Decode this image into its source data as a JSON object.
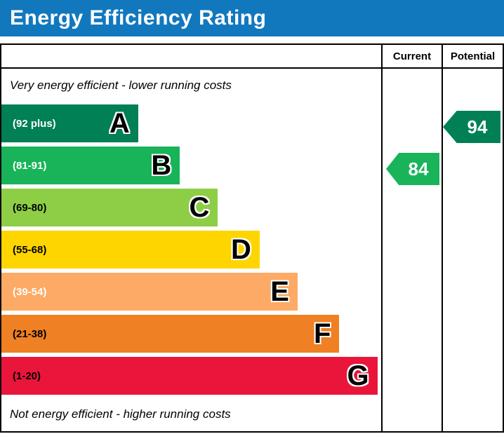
{
  "header": {
    "title": "Energy Efficiency Rating"
  },
  "table": {
    "current_label": "Current",
    "potential_label": "Potential"
  },
  "captions": {
    "top": "Very energy efficient - lower running costs",
    "bottom": "Not energy efficient - higher running costs"
  },
  "bands": [
    {
      "letter": "A",
      "range": "(92 plus)",
      "color": "#008054",
      "text_color": "#ffffff",
      "width": "36%"
    },
    {
      "letter": "B",
      "range": "(81-91)",
      "color": "#19b459",
      "text_color": "#ffffff",
      "width": "47%"
    },
    {
      "letter": "C",
      "range": "(69-80)",
      "color": "#8dce46",
      "text_color": "#000000",
      "width": "57%"
    },
    {
      "letter": "D",
      "range": "(55-68)",
      "color": "#ffd500",
      "text_color": "#000000",
      "width": "68%"
    },
    {
      "letter": "E",
      "range": "(39-54)",
      "color": "#fcaa65",
      "text_color": "#ffffff",
      "width": "78%"
    },
    {
      "letter": "F",
      "range": "(21-38)",
      "color": "#ef8023",
      "text_color": "#000000",
      "width": "89%"
    },
    {
      "letter": "G",
      "range": "(1-20)",
      "color": "#e9153b",
      "text_color": "#000000",
      "width": "99%"
    }
  ],
  "ratings": {
    "current": {
      "value": "84",
      "band_index": 1,
      "color": "#19b459"
    },
    "potential": {
      "value": "94",
      "band_index": 0,
      "color": "#008054"
    }
  },
  "colors": {
    "title_bg": "#1278be",
    "border": "#000000"
  },
  "chart_data": {
    "type": "bar",
    "title": "Energy Efficiency Rating",
    "categories": [
      "A (92 plus)",
      "B (81-91)",
      "C (69-80)",
      "D (55-68)",
      "E (39-54)",
      "F (21-38)",
      "G (1-20)"
    ],
    "band_colors": [
      "#008054",
      "#19b459",
      "#8dce46",
      "#ffd500",
      "#fcaa65",
      "#ef8023",
      "#e9153b"
    ],
    "bar_lengths_relative": [
      36,
      47,
      57,
      68,
      78,
      89,
      99
    ],
    "columns": [
      "Current",
      "Potential"
    ],
    "current_rating": 84,
    "current_band": "B",
    "potential_rating": 94,
    "potential_band": "A",
    "annotations": [
      "Very energy efficient - lower running costs",
      "Not energy efficient - higher running costs"
    ]
  }
}
